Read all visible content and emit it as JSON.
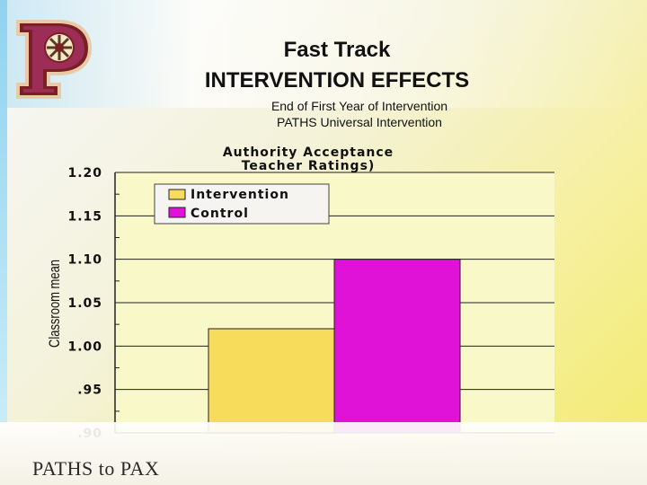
{
  "slide": {
    "title_line1": "Fast Track",
    "title_line2": "INTERVENTION EFFECTS",
    "subtitle_line1": "End of First Year of Intervention",
    "subtitle_line2": "PATHS Universal Intervention",
    "footer": "PATHS to PAX",
    "logo_letter": "P"
  },
  "chart_data": {
    "type": "bar",
    "title_lines": [
      "Authority Acceptance",
      "Teacher Ratings)"
    ],
    "ylabel": "Classroom mean",
    "ylim": [
      0.9,
      1.2
    ],
    "yticks": [
      {
        "value": 1.2,
        "label": "1.20"
      },
      {
        "value": 1.15,
        "label": "1.15"
      },
      {
        "value": 1.1,
        "label": "1.10"
      },
      {
        "value": 1.05,
        "label": "1.05"
      },
      {
        "value": 1.0,
        "label": "1.00"
      },
      {
        "value": 0.95,
        "label": ".95"
      },
      {
        "value": 0.9,
        "label": ".90"
      }
    ],
    "grid": true,
    "legend_position": "top-left",
    "series": [
      {
        "name": "Intervention",
        "values": [
          1.02
        ],
        "color": "#f7dc5c"
      },
      {
        "name": "Control",
        "values": [
          1.1
        ],
        "color": "#e012d8"
      }
    ]
  }
}
